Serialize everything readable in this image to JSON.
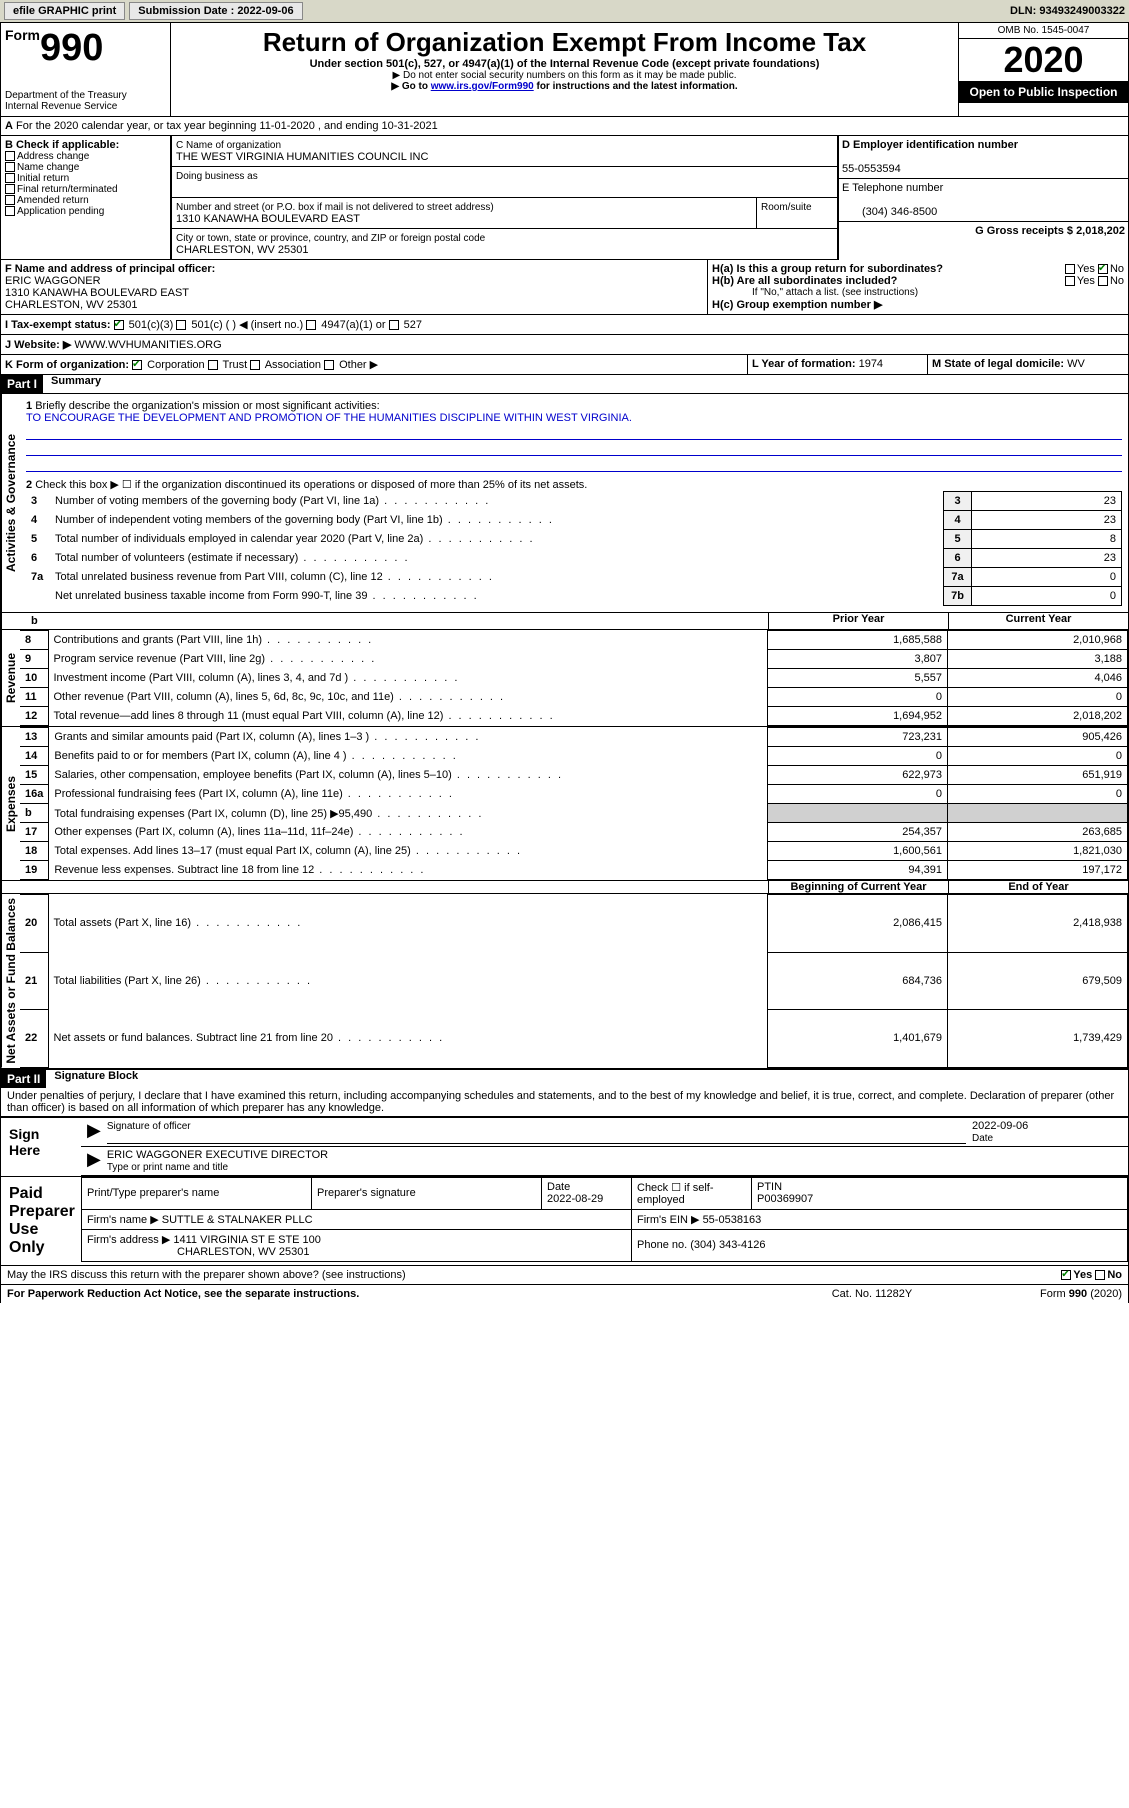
{
  "topbar": {
    "efile": "efile GRAPHIC print",
    "submission_label": "Submission Date : 2022-09-06",
    "dln": "DLN: 93493249003322"
  },
  "header": {
    "form_prefix": "Form",
    "form_num": "990",
    "dept": "Department of the Treasury\nInternal Revenue Service",
    "title": "Return of Organization Exempt From Income Tax",
    "subtitle": "Under section 501(c), 527, or 4947(a)(1) of the Internal Revenue Code (except private foundations)",
    "note1": "▶ Do not enter social security numbers on this form as it may be made public.",
    "note2_pre": "▶ Go to ",
    "note2_link": "www.irs.gov/Form990",
    "note2_post": " for instructions and the latest information.",
    "omb": "OMB No. 1545-0047",
    "year": "2020",
    "open": "Open to Public Inspection"
  },
  "periodA": "For the 2020 calendar year, or tax year beginning 11-01-2020   , and ending 10-31-2021",
  "sectionB": {
    "label": "B Check if applicable:",
    "items": [
      "Address change",
      "Name change",
      "Initial return",
      "Final return/terminated",
      "Amended return",
      "Application pending"
    ]
  },
  "sectionC": {
    "name_label": "C Name of organization",
    "name": "THE WEST VIRGINIA HUMANITIES COUNCIL INC",
    "dba_label": "Doing business as",
    "street_label": "Number and street (or P.O. box if mail is not delivered to street address)",
    "room_label": "Room/suite",
    "street": "1310 KANAWHA BOULEVARD EAST",
    "city_label": "City or town, state or province, country, and ZIP or foreign postal code",
    "city": "CHARLESTON, WV  25301"
  },
  "sectionD": {
    "label": "D Employer identification number",
    "value": "55-0553594"
  },
  "sectionE": {
    "label": "E Telephone number",
    "value": "(304) 346-8500"
  },
  "sectionG": {
    "label": "G Gross receipts $",
    "value": "2,018,202"
  },
  "sectionF": {
    "label": "F  Name and address of principal officer:",
    "name": "ERIC WAGGONER",
    "street": "1310 KANAWHA BOULEVARD EAST",
    "city": "CHARLESTON, WV  25301"
  },
  "sectionH": {
    "a": "H(a)  Is this a group return for subordinates?",
    "b": "H(b)  Are all subordinates included?",
    "b_note": "If \"No,\" attach a list. (see instructions)",
    "c": "H(c)  Group exemption number ▶",
    "yes": "Yes",
    "no": "No"
  },
  "sectionI": {
    "label": "I  Tax-exempt status:",
    "opts": [
      "501(c)(3)",
      "501(c) (   ) ◀ (insert no.)",
      "4947(a)(1) or",
      "527"
    ]
  },
  "sectionJ": {
    "label": "J   Website: ▶",
    "value": "WWW.WVHUMANITIES.ORG"
  },
  "sectionK": {
    "label": "K Form of organization:",
    "opts": [
      "Corporation",
      "Trust",
      "Association",
      "Other ▶"
    ]
  },
  "sectionL": {
    "label": "L Year of formation:",
    "value": "1974"
  },
  "sectionM": {
    "label": "M State of legal domicile:",
    "value": "WV"
  },
  "part1": {
    "hdr": "Part I",
    "title": "Summary"
  },
  "summary": {
    "q1": "Briefly describe the organization's mission or most significant activities:",
    "mission": "TO ENCOURAGE THE DEVELOPMENT AND PROMOTION OF THE HUMANITIES DISCIPLINE WITHIN WEST VIRGINIA.",
    "q2": "Check this box ▶ ☐  if the organization discontinued its operations or disposed of more than 25% of its net assets.",
    "rows": [
      {
        "n": "3",
        "t": "Number of voting members of the governing body (Part VI, line 1a)",
        "b": "3",
        "v": "23"
      },
      {
        "n": "4",
        "t": "Number of independent voting members of the governing body (Part VI, line 1b)",
        "b": "4",
        "v": "23"
      },
      {
        "n": "5",
        "t": "Total number of individuals employed in calendar year 2020 (Part V, line 2a)",
        "b": "5",
        "v": "8"
      },
      {
        "n": "6",
        "t": "Total number of volunteers (estimate if necessary)",
        "b": "6",
        "v": "23"
      },
      {
        "n": "7a",
        "t": "Total unrelated business revenue from Part VIII, column (C), line 12",
        "b": "7a",
        "v": "0"
      },
      {
        "n": "",
        "t": "Net unrelated business taxable income from Form 990-T, line 39",
        "b": "7b",
        "v": "0"
      }
    ]
  },
  "vert_labels": {
    "gov": "Activities & Governance",
    "rev": "Revenue",
    "exp": "Expenses",
    "net": "Net Assets or Fund Balances"
  },
  "twoCol": {
    "h1": "Prior Year",
    "h2": "Current Year",
    "h3": "Beginning of Current Year",
    "h4": "End of Year",
    "rev": [
      {
        "n": "8",
        "t": "Contributions and grants (Part VIII, line 1h)",
        "p": "1,685,588",
        "c": "2,010,968"
      },
      {
        "n": "9",
        "t": "Program service revenue (Part VIII, line 2g)",
        "p": "3,807",
        "c": "3,188"
      },
      {
        "n": "10",
        "t": "Investment income (Part VIII, column (A), lines 3, 4, and 7d )",
        "p": "5,557",
        "c": "4,046"
      },
      {
        "n": "11",
        "t": "Other revenue (Part VIII, column (A), lines 5, 6d, 8c, 9c, 10c, and 11e)",
        "p": "0",
        "c": "0"
      },
      {
        "n": "12",
        "t": "Total revenue—add lines 8 through 11 (must equal Part VIII, column (A), line 12)",
        "p": "1,694,952",
        "c": "2,018,202"
      }
    ],
    "exp": [
      {
        "n": "13",
        "t": "Grants and similar amounts paid (Part IX, column (A), lines 1–3 )",
        "p": "723,231",
        "c": "905,426"
      },
      {
        "n": "14",
        "t": "Benefits paid to or for members (Part IX, column (A), line 4 )",
        "p": "0",
        "c": "0"
      },
      {
        "n": "15",
        "t": "Salaries, other compensation, employee benefits (Part IX, column (A), lines 5–10)",
        "p": "622,973",
        "c": "651,919"
      },
      {
        "n": "16a",
        "t": "Professional fundraising fees (Part IX, column (A), line 11e)",
        "p": "0",
        "c": "0"
      },
      {
        "n": "b",
        "t": "Total fundraising expenses (Part IX, column (D), line 25) ▶95,490",
        "p": "",
        "c": "",
        "gray": true
      },
      {
        "n": "17",
        "t": "Other expenses (Part IX, column (A), lines 11a–11d, 11f–24e)",
        "p": "254,357",
        "c": "263,685"
      },
      {
        "n": "18",
        "t": "Total expenses. Add lines 13–17 (must equal Part IX, column (A), line 25)",
        "p": "1,600,561",
        "c": "1,821,030"
      },
      {
        "n": "19",
        "t": "Revenue less expenses. Subtract line 18 from line 12",
        "p": "94,391",
        "c": "197,172"
      }
    ],
    "net": [
      {
        "n": "20",
        "t": "Total assets (Part X, line 16)",
        "p": "2,086,415",
        "c": "2,418,938"
      },
      {
        "n": "21",
        "t": "Total liabilities (Part X, line 26)",
        "p": "684,736",
        "c": "679,509"
      },
      {
        "n": "22",
        "t": "Net assets or fund balances. Subtract line 21 from line 20",
        "p": "1,401,679",
        "c": "1,739,429"
      }
    ]
  },
  "part2": {
    "hdr": "Part II",
    "title": "Signature Block",
    "perjury": "Under penalties of perjury, I declare that I have examined this return, including accompanying schedules and statements, and to the best of my knowledge and belief, it is true, correct, and complete. Declaration of preparer (other than officer) is based on all information of which preparer has any knowledge."
  },
  "sign": {
    "here": "Sign Here",
    "sig_officer": "Signature of officer",
    "date": "Date",
    "date_v": "2022-09-06",
    "name": "ERIC WAGGONER  EXECUTIVE DIRECTOR",
    "name_label": "Type or print name and title"
  },
  "paid": {
    "label": "Paid Preparer Use Only",
    "h": [
      "Print/Type preparer's name",
      "Preparer's signature",
      "Date",
      "",
      "PTIN"
    ],
    "date_v": "2022-08-29",
    "check_label": "Check ☐ if self-employed",
    "ptin": "P00369907",
    "firm_label": "Firm's name    ▶",
    "firm": "SUTTLE & STALNAKER PLLC",
    "ein_label": "Firm's EIN ▶",
    "ein": "55-0538163",
    "addr_label": "Firm's address ▶",
    "addr1": "1411 VIRGINIA ST E STE 100",
    "addr2": "CHARLESTON, WV  25301",
    "phone_label": "Phone no.",
    "phone": "(304) 343-4126"
  },
  "footer": {
    "discuss": "May the IRS discuss this return with the preparer shown above? (see instructions)",
    "yes": "Yes",
    "no": "No",
    "pra": "For Paperwork Reduction Act Notice, see the separate instructions.",
    "cat": "Cat. No. 11282Y",
    "form": "Form 990 (2020)"
  }
}
